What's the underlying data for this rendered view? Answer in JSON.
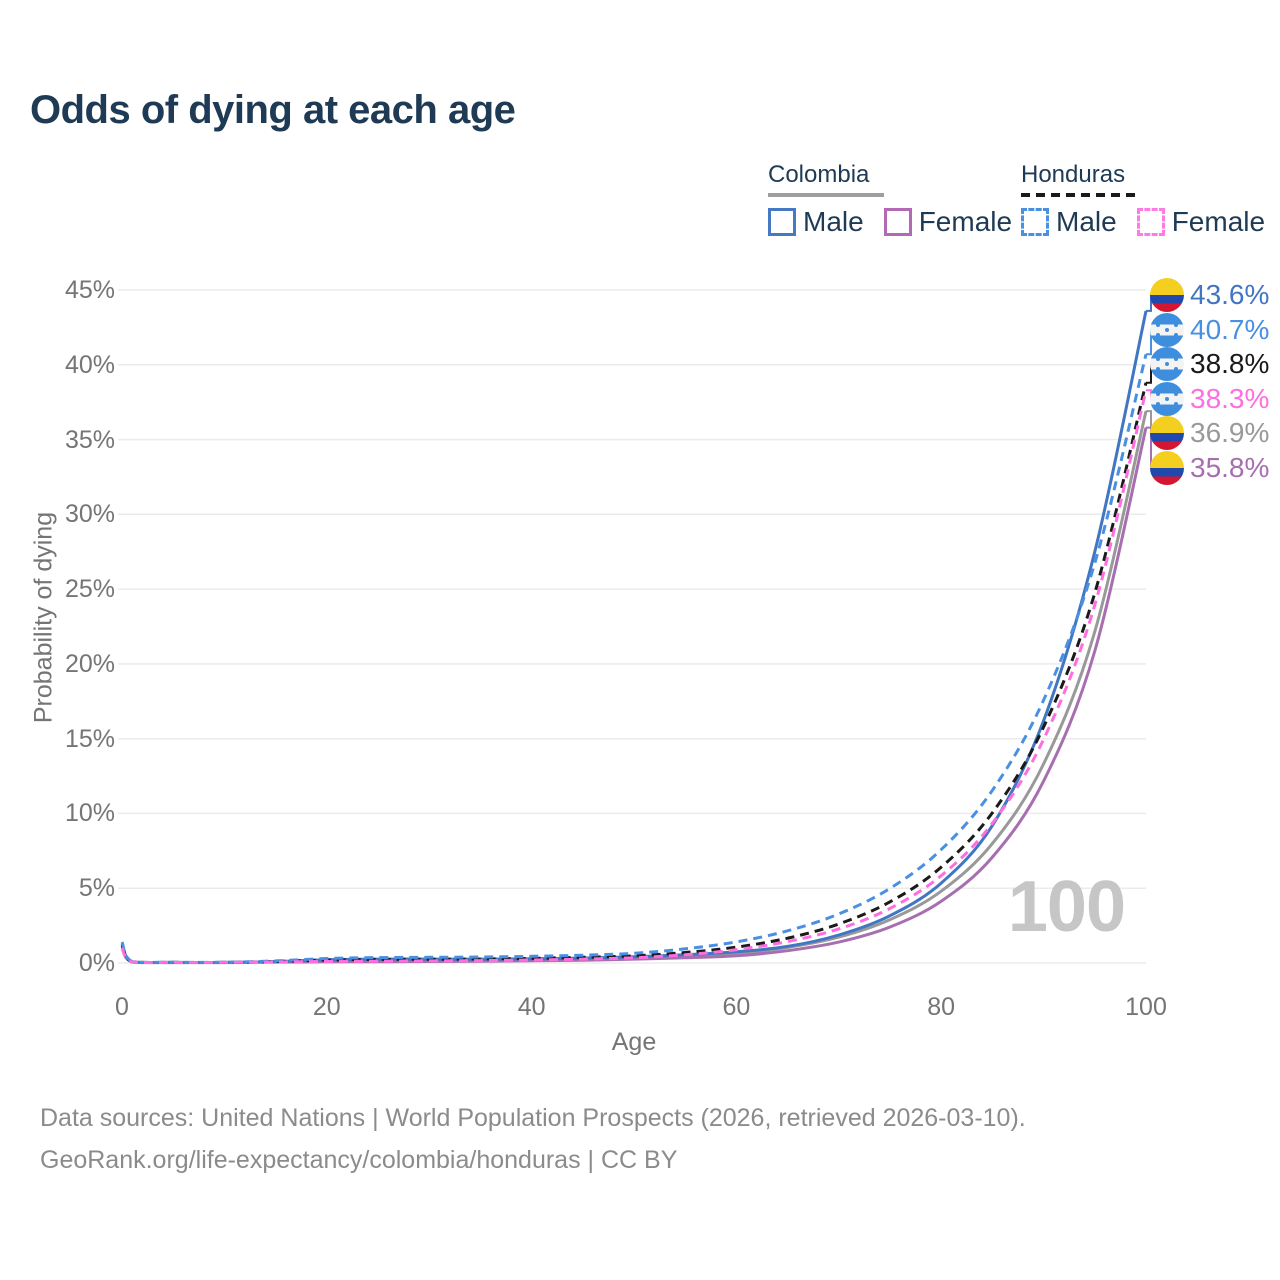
{
  "title": "Odds of dying at each age",
  "legend": {
    "groups": [
      {
        "label": "Colombia",
        "line_style": "solid",
        "line_color": "#9e9e9e",
        "items": [
          {
            "label": "Male",
            "color": "#4579c4",
            "dashed": false
          },
          {
            "label": "Female",
            "color": "#b369b6",
            "dashed": false
          }
        ]
      },
      {
        "label": "Honduras",
        "line_style": "dashed",
        "line_color": "#1a1a1a",
        "items": [
          {
            "label": "Male",
            "color": "#4a90e2",
            "dashed": true
          },
          {
            "label": "Female",
            "color": "#ff7ae4",
            "dashed": true
          }
        ]
      }
    ]
  },
  "chart_data": {
    "type": "line",
    "title": "Odds of dying at each age",
    "xlabel": "Age",
    "ylabel": "Probability of dying",
    "xlim": [
      0,
      100
    ],
    "ylim": [
      0,
      45
    ],
    "grid": true,
    "grid_color": "#ebebeb",
    "watermark": "100",
    "legend_position": "top-right",
    "xticks": {
      "values": [
        0,
        20,
        40,
        60,
        80,
        100
      ],
      "labels": [
        "0",
        "20",
        "40",
        "60",
        "80",
        "100"
      ]
    },
    "yticks": {
      "values": [
        0,
        5,
        10,
        15,
        20,
        25,
        30,
        35,
        40,
        45
      ],
      "labels": [
        "0%",
        "5%",
        "10%",
        "15%",
        "20%",
        "25%",
        "30%",
        "35%",
        "40%",
        "45%"
      ]
    },
    "x": [
      0,
      1,
      5,
      10,
      15,
      20,
      25,
      30,
      35,
      40,
      45,
      50,
      55,
      60,
      65,
      70,
      75,
      80,
      85,
      90,
      95,
      100
    ],
    "series": [
      {
        "name": "Colombia",
        "country": "colombia",
        "color": "#999999",
        "dashed": false,
        "end_label": "36.9%",
        "values": [
          1.15,
          0.07,
          0.04,
          0.04,
          0.08,
          0.14,
          0.16,
          0.16,
          0.17,
          0.2,
          0.25,
          0.32,
          0.43,
          0.62,
          1.04,
          1.73,
          2.9,
          4.8,
          7.99,
          13.31,
          22.16,
          36.9
        ]
      },
      {
        "name": "Colombia Female",
        "country": "colombia",
        "color": "#a76fb0",
        "dashed": false,
        "end_label": "35.8%",
        "values": [
          1.0,
          0.06,
          0.03,
          0.03,
          0.06,
          0.08,
          0.09,
          0.1,
          0.12,
          0.15,
          0.19,
          0.26,
          0.35,
          0.48,
          0.82,
          1.4,
          2.41,
          4.13,
          7.08,
          12.16,
          20.86,
          35.8
        ]
      },
      {
        "name": "Colombia Male",
        "country": "colombia",
        "color": "#4076c2",
        "dashed": false,
        "end_label": "43.6%",
        "values": [
          1.3,
          0.08,
          0.04,
          0.04,
          0.1,
          0.22,
          0.26,
          0.26,
          0.26,
          0.28,
          0.33,
          0.42,
          0.55,
          0.75,
          1.11,
          1.87,
          3.16,
          5.34,
          9.2,
          16.2,
          27.5,
          43.6
        ]
      },
      {
        "name": "Honduras",
        "country": "honduras",
        "color": "#1a1a1a",
        "dashed": true,
        "end_label": "38.8%",
        "values": [
          1.2,
          0.08,
          0.04,
          0.04,
          0.1,
          0.2,
          0.24,
          0.25,
          0.27,
          0.31,
          0.38,
          0.48,
          0.7,
          1.06,
          1.66,
          2.61,
          4.09,
          6.41,
          10.05,
          15.78,
          24.74,
          38.8
        ]
      },
      {
        "name": "Honduras Male",
        "country": "honduras",
        "color": "#4a90e2",
        "dashed": true,
        "end_label": "40.7%",
        "values": [
          1.4,
          0.1,
          0.05,
          0.05,
          0.14,
          0.3,
          0.36,
          0.38,
          0.4,
          0.45,
          0.52,
          0.65,
          0.95,
          1.41,
          2.15,
          3.28,
          4.99,
          7.58,
          11.55,
          17.58,
          26.74,
          40.7
        ]
      },
      {
        "name": "Honduras Female",
        "country": "honduras",
        "color": "#ff6ee0",
        "dashed": true,
        "end_label": "38.3%",
        "values": [
          1.0,
          0.07,
          0.04,
          0.04,
          0.07,
          0.1,
          0.12,
          0.14,
          0.16,
          0.2,
          0.26,
          0.35,
          0.55,
          0.89,
          1.43,
          2.28,
          3.65,
          5.84,
          9.35,
          14.96,
          23.94,
          38.3
        ]
      }
    ]
  },
  "flags": {
    "colombia": {
      "yellow": "#f5cf1f",
      "blue": "#2149ad",
      "red": "#d31733"
    },
    "honduras": {
      "blue": "#3f8ede",
      "white": "#f3f3f3"
    }
  },
  "footer": {
    "line1": "Data sources: United Nations | World Population Prospects (2026, retrieved 2026-03-10).",
    "line2": "GeoRank.org/life-expectancy/colombia/honduras | CC BY"
  }
}
